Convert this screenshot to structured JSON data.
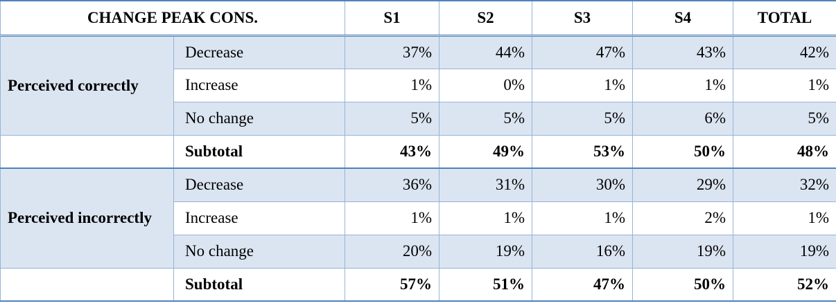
{
  "table": {
    "header": [
      "CHANGE PEAK CONS.",
      "S1",
      "S2",
      "S3",
      "S4",
      "TOTAL"
    ],
    "groups": [
      {
        "label": "Perceived correctly",
        "rows": [
          {
            "label": "Decrease",
            "values": [
              "37%",
              "44%",
              "47%",
              "43%",
              "42%"
            ]
          },
          {
            "label": "Increase",
            "values": [
              "1%",
              "0%",
              "1%",
              "1%",
              "1%"
            ]
          },
          {
            "label": "No change",
            "values": [
              "5%",
              "5%",
              "5%",
              "6%",
              "5%"
            ]
          }
        ],
        "subtotal": {
          "label": "Subtotal",
          "values": [
            "43%",
            "49%",
            "53%",
            "50%",
            "48%"
          ]
        }
      },
      {
        "label": "Perceived incorrectly",
        "rows": [
          {
            "label": "Decrease",
            "values": [
              "36%",
              "31%",
              "30%",
              "29%",
              "32%"
            ]
          },
          {
            "label": "Increase",
            "values": [
              "1%",
              "1%",
              "1%",
              "2%",
              "1%"
            ]
          },
          {
            "label": "No change",
            "values": [
              "20%",
              "19%",
              "16%",
              "19%",
              "19%"
            ]
          }
        ],
        "subtotal": {
          "label": "Subtotal",
          "values": [
            "57%",
            "51%",
            "47%",
            "50%",
            "52%"
          ]
        }
      }
    ]
  }
}
